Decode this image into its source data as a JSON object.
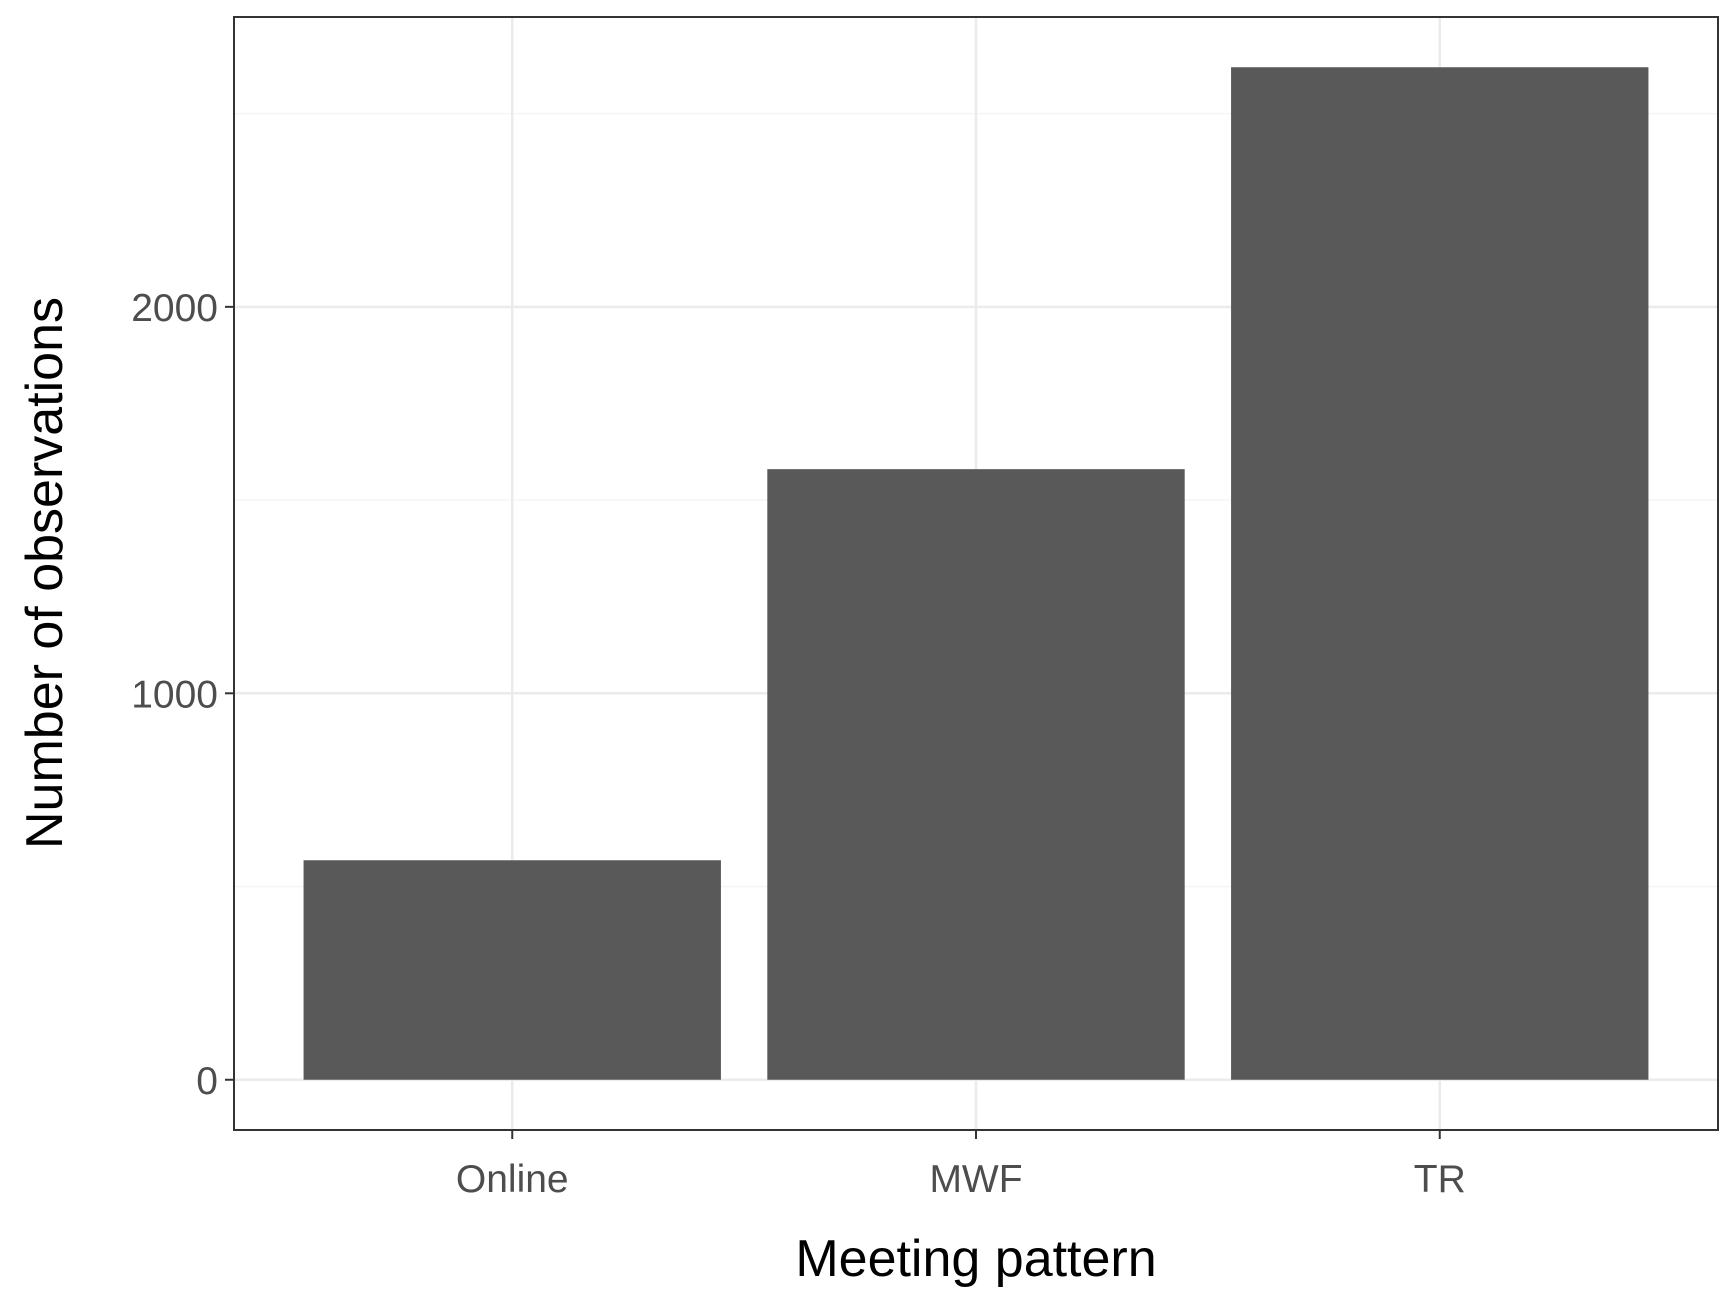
{
  "chart_data": {
    "type": "bar",
    "categories": [
      "Online",
      "MWF",
      "TR"
    ],
    "values": [
      568,
      1580,
      2620
    ],
    "xlabel": "Meeting pattern",
    "ylabel": "Number of observations",
    "ylim": [
      -130,
      2750
    ],
    "yticks": [
      0,
      1000,
      2000
    ],
    "ytick_labels": [
      "0",
      "1000",
      "2000"
    ],
    "grid": true,
    "legend": "none",
    "colors": {
      "bar": "#595959",
      "panel_border": "#333333",
      "grid_major": "#ebebeb",
      "grid_minor": "#f5f5f5",
      "tick_text": "#4d4d4d",
      "axis_title": "#000000"
    }
  }
}
